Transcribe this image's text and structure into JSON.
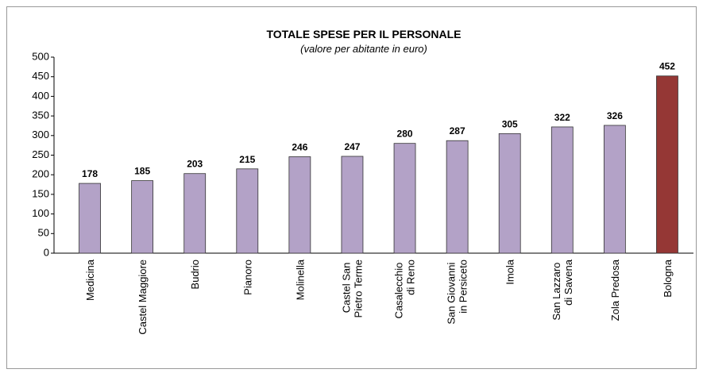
{
  "chart_data": {
    "type": "bar",
    "title": "TOTALE SPESE PER IL PERSONALE",
    "subtitle": "(valore per abitante in euro)",
    "categories": [
      "Medicina",
      "Castel Maggiore",
      "Budrio",
      "Pianoro",
      "Molinella",
      "Castel San Pietro Terme",
      "Casalecchio di Reno",
      "San Giovanni in Persiceto",
      "Imola",
      "San Lazzaro di Savena",
      "Zola Predosa",
      "Bologna"
    ],
    "values": [
      178,
      185,
      203,
      215,
      246,
      247,
      280,
      287,
      305,
      322,
      326,
      452
    ],
    "colors": [
      "#b3a2c7",
      "#b3a2c7",
      "#b3a2c7",
      "#b3a2c7",
      "#b3a2c7",
      "#b3a2c7",
      "#b3a2c7",
      "#b3a2c7",
      "#b3a2c7",
      "#b3a2c7",
      "#b3a2c7",
      "#953735"
    ],
    "ylim": [
      0,
      500
    ],
    "yticks": [
      0,
      50,
      100,
      150,
      200,
      250,
      300,
      350,
      400,
      450,
      500
    ],
    "grid": false
  }
}
